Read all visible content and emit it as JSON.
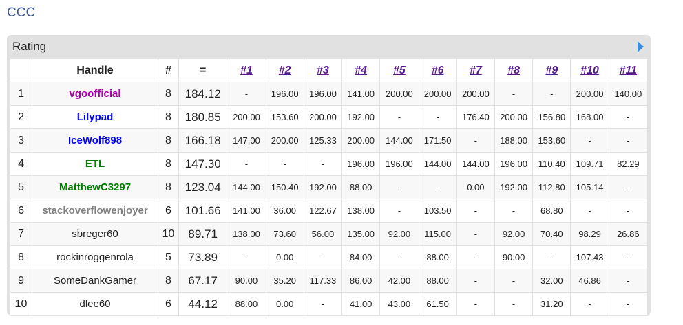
{
  "page": {
    "title": "CCC"
  },
  "panel": {
    "title": "Rating"
  },
  "table": {
    "headers": {
      "rank": "",
      "handle": "Handle",
      "solved": "#",
      "penalty": "=",
      "problems": [
        "#1",
        "#2",
        "#3",
        "#4",
        "#5",
        "#6",
        "#7",
        "#8",
        "#9",
        "#10",
        "#11"
      ]
    },
    "rows": [
      {
        "rank": "1",
        "handle": "vgoofficial",
        "color": "#aa00aa",
        "rated": true,
        "solved": "8",
        "penalty": "184.12",
        "scores": [
          "-",
          "196.00",
          "196.00",
          "141.00",
          "200.00",
          "200.00",
          "200.00",
          "-",
          "-",
          "200.00",
          "140.00"
        ]
      },
      {
        "rank": "2",
        "handle": "Lilypad",
        "color": "#0000ff",
        "rated": true,
        "solved": "8",
        "penalty": "180.85",
        "scores": [
          "200.00",
          "153.60",
          "200.00",
          "192.00",
          "-",
          "-",
          "176.40",
          "200.00",
          "156.80",
          "168.00",
          "-"
        ]
      },
      {
        "rank": "3",
        "handle": "IceWolf898",
        "color": "#0000ff",
        "rated": true,
        "solved": "8",
        "penalty": "166.18",
        "scores": [
          "147.00",
          "200.00",
          "125.33",
          "200.00",
          "144.00",
          "171.50",
          "-",
          "188.00",
          "153.60",
          "-",
          "-"
        ]
      },
      {
        "rank": "4",
        "handle": "ETL",
        "color": "#008000",
        "rated": true,
        "solved": "8",
        "penalty": "147.30",
        "scores": [
          "-",
          "-",
          "-",
          "196.00",
          "196.00",
          "144.00",
          "144.00",
          "196.00",
          "110.40",
          "109.71",
          "82.29"
        ]
      },
      {
        "rank": "5",
        "handle": "MatthewC3297",
        "color": "#008000",
        "rated": true,
        "solved": "8",
        "penalty": "123.04",
        "scores": [
          "144.00",
          "150.40",
          "192.00",
          "88.00",
          "-",
          "-",
          "0.00",
          "192.00",
          "112.80",
          "105.14",
          "-"
        ]
      },
      {
        "rank": "6",
        "handle": "stackoverflowenjoyer",
        "color": "#808080",
        "rated": true,
        "solved": "6",
        "penalty": "101.66",
        "scores": [
          "141.00",
          "36.00",
          "122.67",
          "138.00",
          "-",
          "103.50",
          "-",
          "-",
          "68.80",
          "-",
          "-"
        ]
      },
      {
        "rank": "7",
        "handle": "sbreger60",
        "color": "#222222",
        "rated": false,
        "solved": "10",
        "penalty": "89.71",
        "scores": [
          "138.00",
          "73.60",
          "56.00",
          "135.00",
          "92.00",
          "115.00",
          "-",
          "92.00",
          "70.40",
          "98.29",
          "26.86"
        ]
      },
      {
        "rank": "8",
        "handle": "rockinroggenrola",
        "color": "#222222",
        "rated": false,
        "solved": "5",
        "penalty": "73.89",
        "scores": [
          "-",
          "0.00",
          "-",
          "84.00",
          "-",
          "88.00",
          "-",
          "90.00",
          "-",
          "107.43",
          "-"
        ]
      },
      {
        "rank": "9",
        "handle": "SomeDankGamer",
        "color": "#222222",
        "rated": false,
        "solved": "8",
        "penalty": "67.17",
        "scores": [
          "90.00",
          "35.20",
          "117.33",
          "86.00",
          "42.00",
          "88.00",
          "-",
          "-",
          "32.00",
          "46.86",
          "-"
        ]
      },
      {
        "rank": "10",
        "handle": "dlee60",
        "color": "#222222",
        "rated": false,
        "solved": "6",
        "penalty": "44.12",
        "scores": [
          "88.00",
          "0.00",
          "-",
          "41.00",
          "43.00",
          "61.50",
          "-",
          "-",
          "31.20",
          "-",
          "-"
        ]
      }
    ]
  }
}
